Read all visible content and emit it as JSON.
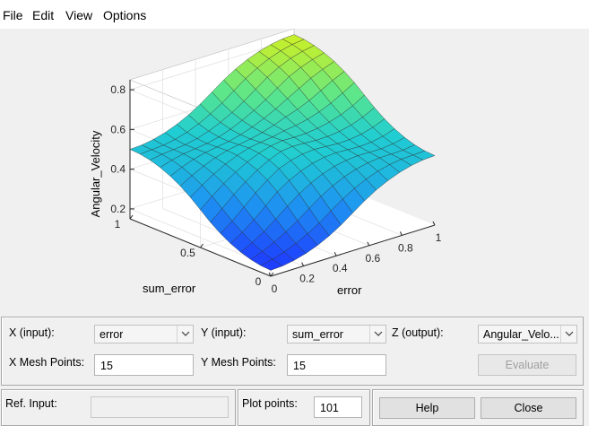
{
  "menu": {
    "file": "File",
    "edit": "Edit",
    "view": "View",
    "options": "Options"
  },
  "plot": {
    "zlabel": "Angular_Velocity",
    "xlabel": "error",
    "ylabel": "sum_error",
    "z_ticks": [
      "0.8",
      "0.6",
      "0.4",
      "0.2"
    ],
    "x_ticks": [
      "0",
      "0.2",
      "0.4",
      "0.6",
      "0.8",
      "1"
    ],
    "y_ticks": [
      "1",
      "0.5",
      "0"
    ],
    "colors": {
      "low": "#1e3cff",
      "mid": "#20c0d0",
      "high": "#c8f02a"
    }
  },
  "chart_data": {
    "type": "surface",
    "xlabel": "error",
    "ylabel": "sum_error",
    "zlabel": "Angular_Velocity",
    "xlim": [
      0,
      1
    ],
    "ylim": [
      0,
      1
    ],
    "zlim": [
      0.15,
      0.85
    ],
    "x_mesh_points": 15,
    "y_mesh_points": 15,
    "corner_values": {
      "x0_y0": 0.18,
      "x1_y0": 0.5,
      "x0_y1": 0.5,
      "x1_y1": 0.82
    }
  },
  "controls": {
    "x_input_label": "X (input):",
    "x_input_value": "error",
    "y_input_label": "Y (input):",
    "y_input_value": "sum_error",
    "z_output_label": "Z (output):",
    "z_output_value": "Angular_Velo...",
    "x_mesh_label": "X Mesh Points:",
    "x_mesh_value": "15",
    "y_mesh_label": "Y Mesh Points:",
    "y_mesh_value": "15",
    "evaluate_label": "Evaluate",
    "ref_input_label": "Ref. Input:",
    "ref_input_value": "",
    "plot_points_label": "Plot points:",
    "plot_points_value": "101",
    "help_label": "Help",
    "close_label": "Close"
  }
}
